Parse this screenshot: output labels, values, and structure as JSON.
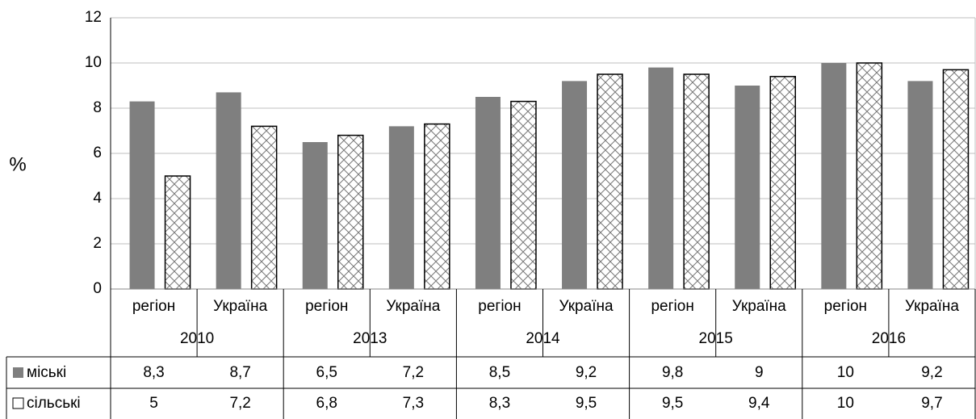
{
  "chart_data": {
    "type": "bar",
    "ylabel": "%",
    "categories": [
      "регіон",
      "Україна",
      "регіон",
      "Україна",
      "регіон",
      "Україна",
      "регіон",
      "Україна",
      "регіон",
      "Україна"
    ],
    "groups": [
      "2010",
      "2013",
      "2014",
      "2015",
      "2016"
    ],
    "series": [
      {
        "name": "міські",
        "color": "#7f7f7f",
        "values": [
          8.3,
          8.7,
          6.5,
          7.2,
          8.5,
          9.2,
          9.8,
          9,
          10,
          9.2
        ],
        "value_labels": [
          "8,3",
          "8,7",
          "6,5",
          "7,2",
          "8,5",
          "9,2",
          "9,8",
          "9",
          "10",
          "9,2"
        ]
      },
      {
        "name": "сільські",
        "color": "#ffffff",
        "pattern": "crosshatch",
        "values": [
          5,
          7.2,
          6.8,
          7.3,
          8.3,
          9.5,
          9.5,
          9.4,
          10,
          9.7
        ],
        "value_labels": [
          "5",
          "7,2",
          "6,8",
          "7,3",
          "8,3",
          "9,5",
          "9,5",
          "9,4",
          "10",
          "9,7"
        ]
      }
    ],
    "ylim": [
      0,
      12
    ],
    "yticks": [
      0,
      2,
      4,
      6,
      8,
      10,
      12
    ],
    "grid": true
  }
}
